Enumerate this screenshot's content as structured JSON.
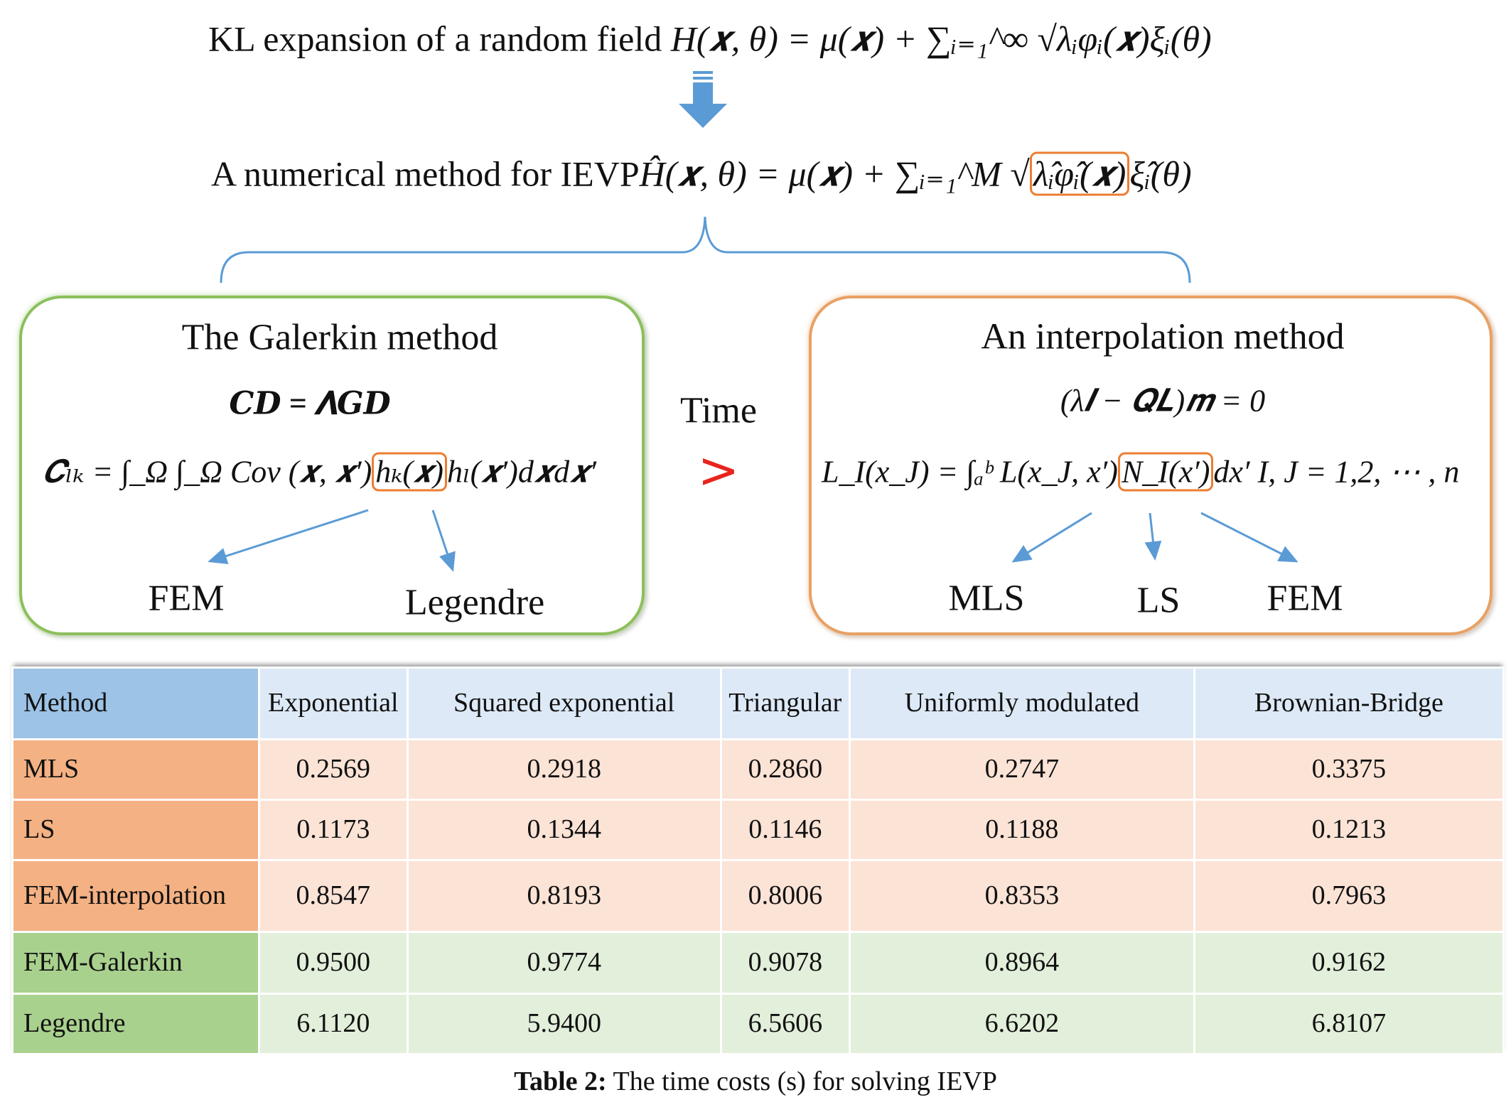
{
  "top": {
    "line1_text": "KL expansion of a random field",
    "line1_formula": "H(𝒙, θ) = μ(𝒙) + ∑ᵢ₌₁^∞ √λᵢφᵢ(𝒙)ξᵢ(θ)",
    "line2_text": "A numerical method for IEVP",
    "line2_formula_before": "Ĥ(𝒙, θ) = μ(𝒙) + ∑ᵢ₌₁^M √",
    "line2_formula_boxed": "λ̂ᵢφ̂ᵢ(𝒙)",
    "line2_formula_after": "ξ̂ᵢ(θ)"
  },
  "galerkin": {
    "title": "The Galerkin method",
    "equation": "𝑪𝑫 = 𝚲𝑮𝑫",
    "formula_before": "𝑪ₗₖ = ∫_Ω ∫_Ω Cov (𝒙, 𝒙′)",
    "formula_boxed": "hₖ(𝒙)",
    "formula_after": "hₗ(𝒙′)d𝒙d𝒙′",
    "labels": [
      "FEM",
      "Legendre"
    ]
  },
  "comparison": {
    "label": "Time",
    "symbol": ">"
  },
  "interpolation": {
    "title": "An interpolation method",
    "equation": "(λ𝑰 − 𝑸𝑳)𝒎 = 0",
    "formula_before": "L_I(x_J) = ∫ₐᵇ L(x_J, x′)",
    "formula_boxed": "N_I(x′)",
    "formula_after": "dx′   I, J = 1,2, ⋯ , n",
    "labels": [
      "MLS",
      "LS",
      "FEM"
    ]
  },
  "table": {
    "headers": [
      "Method",
      "Exponential",
      "Squared exponential",
      "Triangular",
      "Uniformly modulated",
      "Brownian-Bridge"
    ],
    "rows": [
      {
        "method": "MLS",
        "values": [
          "0.2569",
          "0.2918",
          "0.2860",
          "0.2747",
          "0.3375"
        ]
      },
      {
        "method": "LS",
        "values": [
          "0.1173",
          "0.1344",
          "0.1146",
          "0.1188",
          "0.1213"
        ]
      },
      {
        "method": "FEM-interpolation",
        "values": [
          "0.8547",
          "0.8193",
          "0.8006",
          "0.8353",
          "0.7963"
        ]
      },
      {
        "method": "FEM-Galerkin",
        "values": [
          "0.9500",
          "0.9774",
          "0.9078",
          "0.8964",
          "0.9162"
        ]
      },
      {
        "method": "Legendre",
        "values": [
          "6.1120",
          "5.9400",
          "6.5606",
          "6.6202",
          "6.8107"
        ]
      }
    ],
    "caption_bold": "Table 2:",
    "caption": " The time costs (s) for solving IEVP"
  },
  "colors": {
    "blue": "#5b9bd5",
    "orange": "#ed7d31",
    "green": "#8cbf5c",
    "red": "#e8241c"
  }
}
